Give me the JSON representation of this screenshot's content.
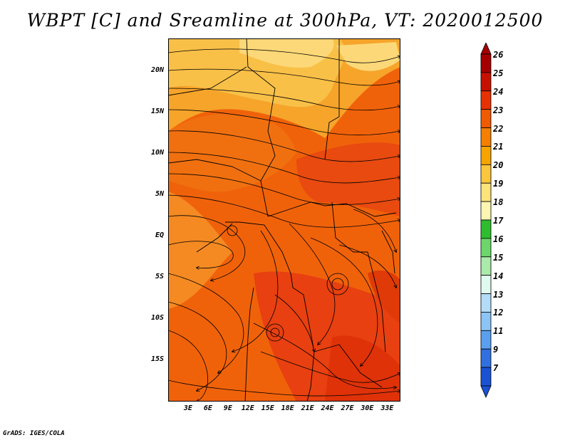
{
  "title": "WBPT [C] and Sreamline at 300hPa, VT: 2020012500",
  "footer": "GrADS: IGES/COLA",
  "map": {
    "lat_ticks": [
      "20N",
      "15N",
      "10N",
      "5N",
      "EQ",
      "5S",
      "10S",
      "15S"
    ],
    "lon_ticks": [
      "3E",
      "6E",
      "9E",
      "12E",
      "15E",
      "18E",
      "21E",
      "24E",
      "27E",
      "30E",
      "33E"
    ],
    "lon_range": [
      0,
      35
    ],
    "lat_range": [
      -20,
      24
    ]
  },
  "colorbar": {
    "labels": [
      "26",
      "25",
      "24",
      "23",
      "22",
      "21",
      "20",
      "19",
      "18",
      "17",
      "16",
      "15",
      "14",
      "13",
      "12",
      "11",
      "9",
      "7"
    ],
    "colors": [
      "#a50000",
      "#c81000",
      "#e63200",
      "#f05a00",
      "#f47f00",
      "#f7a300",
      "#fbc53c",
      "#fce37a",
      "#fdf6b3",
      "#2ebd2e",
      "#6cd66c",
      "#aaeaaa",
      "#e1faf0",
      "#b3dcf9",
      "#8cc4f5",
      "#5aa0ee",
      "#3070e0",
      "#1a52d4"
    ]
  }
}
